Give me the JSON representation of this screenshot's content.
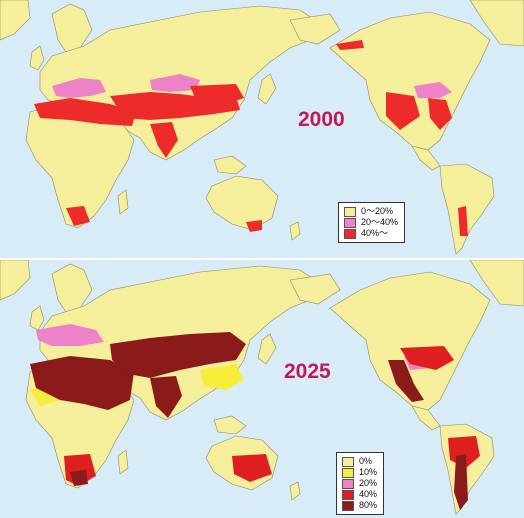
{
  "colors": {
    "ocean": "#d8ecf7",
    "land": "#f5ee9a",
    "border": "#8c8a6a"
  },
  "map_2000": {
    "year_label": "2000",
    "legend": [
      {
        "label": "0～20%",
        "color": "#f5ee9a"
      },
      {
        "label": "20～40%",
        "color": "#ee82c8"
      },
      {
        "label": "40%～",
        "color": "#ee2b2b"
      }
    ]
  },
  "map_2025": {
    "year_label": "2025",
    "legend": [
      {
        "label": "0%",
        "color": "#f5ee9a"
      },
      {
        "label": "10%",
        "color": "#f6ec3a"
      },
      {
        "label": "20%",
        "color": "#ee82c8"
      },
      {
        "label": "40%",
        "color": "#dd1f1f"
      },
      {
        "label": "80%",
        "color": "#8b1a1a"
      }
    ]
  }
}
